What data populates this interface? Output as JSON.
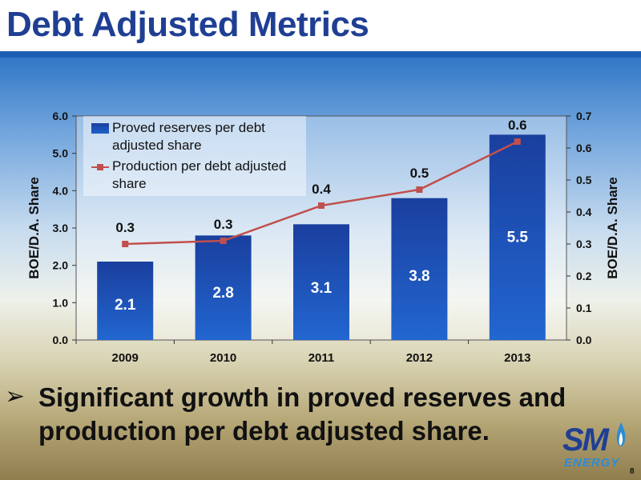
{
  "title": "Debt Adjusted Metrics",
  "chart_data": {
    "type": "bar+line",
    "categories": [
      "2009",
      "2010",
      "2011",
      "2012",
      "2013"
    ],
    "series": [
      {
        "name": "Proved reserves per debt adjusted share",
        "type": "bar",
        "axis": "left",
        "values": [
          2.1,
          2.8,
          3.1,
          3.8,
          5.5
        ],
        "labels": [
          "2.1",
          "2.8",
          "3.1",
          "3.8",
          "5.5"
        ],
        "color": "#1f56b8"
      },
      {
        "name": "Production per debt adjusted share",
        "type": "line",
        "axis": "right",
        "values": [
          0.3,
          0.31,
          0.42,
          0.47,
          0.62
        ],
        "labels": [
          "0.3",
          "0.3",
          "0.4",
          "0.5",
          "0.6"
        ],
        "color": "#c0504d"
      }
    ],
    "y_left": {
      "label": "BOE/D.A. Share",
      "lim": [
        0,
        6
      ],
      "ticks": [
        "0.0",
        "1.0",
        "2.0",
        "3.0",
        "4.0",
        "5.0",
        "6.0"
      ]
    },
    "y_right": {
      "label": "BOE/D.A. Share",
      "lim": [
        0,
        0.7
      ],
      "ticks": [
        "0.0",
        "0.1",
        "0.2",
        "0.3",
        "0.4",
        "0.5",
        "0.6",
        "0.7"
      ]
    },
    "legend": {
      "placement": "top-left",
      "items": [
        "Proved reserves per debt adjusted share",
        "Production per debt adjusted share"
      ]
    },
    "grid": false
  },
  "bullet": {
    "symbol": "➢",
    "text": "Significant growth in proved reserves and production per debt adjusted share."
  },
  "logo": {
    "top": "SM",
    "bottom": "ENERGY"
  },
  "page_number": "8"
}
